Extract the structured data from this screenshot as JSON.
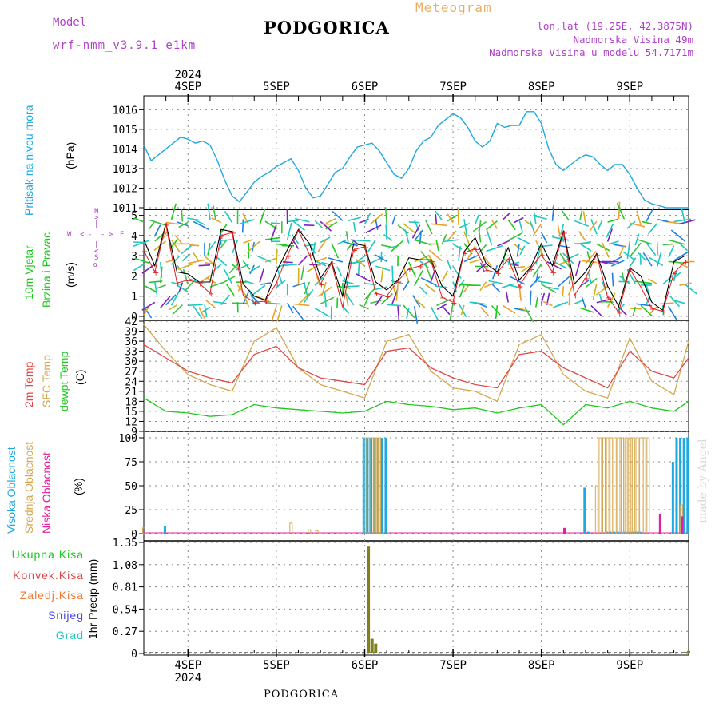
{
  "header": {
    "model_label": "Model",
    "model_run": "wrf-nmm_v3.9.1 e1km",
    "city": "PODGORICA",
    "meteogram": "Meteogram",
    "lonlat": "lon,lat (19.25E, 42.3875N)",
    "height": "Nadmorska Visina 49m",
    "model_height": "Nadmorska Visina u modelu 54.7171m"
  },
  "footer": {
    "city": "PODGORICA"
  },
  "watermark": "made by Angel",
  "colors": {
    "pressure": "#20a8e0",
    "wind_black": "#000000",
    "wind_red": "#e02020",
    "t2m": "#e04848",
    "sfc": "#d4a850",
    "dew": "#20c820",
    "high": "#20a8e0",
    "mid": "#d4a850",
    "low": "#e020a0",
    "precip": "#808020",
    "grid": "#888888"
  },
  "x_axis": {
    "year": "2024",
    "days": [
      "4SEP",
      "5SEP",
      "6SEP",
      "7SEP",
      "8SEP",
      "9SEP"
    ]
  },
  "panels": {
    "pressure": {
      "title": "Pritisak na nivou mora",
      "unit": "(hPa)",
      "ticks": [
        "1011",
        "1012",
        "1013",
        "1014",
        "1015",
        "1016"
      ]
    },
    "wind": {
      "title1": "10m Vjetar",
      "title2": "Brzina i Pravac",
      "unit": "(m/s)",
      "ticks": [
        "0",
        "1",
        "2",
        "3",
        "4",
        "5"
      ],
      "compass": {
        "n": "N",
        "w": "W",
        "e": "E",
        "s": "S",
        "arrow_l": "<",
        "arrow_r": ">",
        "dash": "-",
        "pipe": "|",
        "alpha": "α"
      }
    },
    "temp": {
      "title1": "2m Temp",
      "title2": "SFC Temp",
      "title3": "dewpt Temp",
      "unit": "(C)",
      "ticks": [
        "9",
        "12",
        "15",
        "18",
        "21",
        "24",
        "27",
        "30",
        "33",
        "36",
        "39",
        "42"
      ]
    },
    "cloud": {
      "title1": "Visoka Oblacnost",
      "title2": "Srednja Oblacnost",
      "title3": "Niska Oblacnost",
      "unit": "(%)",
      "ticks": [
        "0",
        "25",
        "50",
        "75",
        "100"
      ]
    },
    "precip": {
      "unit": "1hr Precip (mm)",
      "ticks": [
        "0",
        "0.27",
        "0.54",
        "0.81",
        "1.08",
        "1.35"
      ],
      "legend": [
        "Ukupna Kisa",
        "Konvek.Kisa",
        "Zaledj.Kisa",
        "Snijeg",
        "Grad"
      ]
    }
  },
  "chart_data": [
    {
      "type": "line",
      "title": "Pritisak na nivou mora",
      "ylabel": "(hPa)",
      "ylim": [
        1011,
        1016.3
      ],
      "x_unit": "hours from 2024-09-03 12:00",
      "x": [
        0,
        2,
        4,
        6,
        8,
        10,
        12,
        14,
        16,
        18,
        20,
        22,
        24,
        26,
        28,
        30,
        32,
        34,
        36,
        38,
        40,
        42,
        44,
        46,
        48,
        50,
        52,
        54,
        56,
        58,
        60,
        62,
        64,
        66,
        68,
        70,
        72,
        74,
        76,
        78,
        80,
        82,
        84,
        86,
        88,
        90,
        92,
        94,
        96,
        98,
        100,
        102,
        104,
        106,
        108,
        110,
        112,
        114,
        116,
        118,
        120,
        122,
        124,
        126,
        128,
        130,
        132,
        134,
        136,
        138,
        140,
        142,
        144,
        146,
        148
      ],
      "series": [
        {
          "name": "Pritisak na nivou mora",
          "values": [
            1014.2,
            1013.4,
            1013.7,
            1014.0,
            1014.3,
            1014.6,
            1014.5,
            1014.3,
            1014.4,
            1014.2,
            1013.4,
            1012.4,
            1011.6,
            1011.3,
            1011.8,
            1012.3,
            1012.6,
            1012.8,
            1013.1,
            1013.3,
            1013.5,
            1012.9,
            1012.0,
            1011.5,
            1011.6,
            1012.2,
            1012.8,
            1013.0,
            1013.6,
            1014.1,
            1014.2,
            1014.3,
            1013.9,
            1013.3,
            1012.7,
            1012.5,
            1013.0,
            1013.9,
            1014.4,
            1014.6,
            1015.2,
            1015.5,
            1015.8,
            1015.6,
            1015.1,
            1014.4,
            1014.1,
            1014.4,
            1015.3,
            1015.1,
            1015.2,
            1015.2,
            1015.9,
            1015.9,
            1015.3,
            1014.0,
            1013.2,
            1012.9,
            1013.2,
            1013.5,
            1013.7,
            1013.6,
            1013.2,
            1012.9,
            1013.2,
            1013.2,
            1012.7,
            1012.0,
            1011.4,
            1011.2,
            1011.1,
            1011.0,
            1011.0,
            1011.0,
            1011.0
          ]
        }
      ]
    },
    {
      "type": "line",
      "title": "10m Vjetar Brzina i Pravac",
      "ylabel": "(m/s)",
      "ylim": [
        0,
        5.3
      ],
      "x_unit": "hours from 2024-09-03 12:00",
      "x": [
        0,
        3,
        6,
        9,
        12,
        15,
        18,
        21,
        24,
        27,
        30,
        33,
        36,
        39,
        42,
        45,
        48,
        51,
        54,
        57,
        60,
        63,
        66,
        69,
        72,
        75,
        78,
        81,
        84,
        87,
        90,
        93,
        96,
        99,
        102,
        105,
        108,
        111,
        114,
        117,
        120,
        123,
        126,
        129,
        132,
        135,
        138,
        141,
        144,
        147
      ],
      "series": [
        {
          "name": "10m Vjetar",
          "values": [
            3.8,
            2.5,
            4.6,
            2.2,
            2.1,
            1.7,
            1.7,
            4.3,
            4.2,
            1.6,
            1.0,
            0.8,
            2.2,
            3.3,
            4.3,
            3.6,
            1.9,
            2.7,
            1.0,
            3.6,
            3.5,
            1.7,
            1.3,
            1.8,
            2.9,
            2.8,
            2.8,
            1.5,
            1.0,
            3.2,
            3.9,
            2.6,
            2.2,
            3.4,
            1.8,
            2.4,
            3.6,
            2.5,
            4.2,
            1.6,
            2.2,
            3.1,
            1.5,
            0.5,
            2.4,
            2.0,
            0.7,
            0.3,
            2.7,
            3.0
          ]
        }
      ]
    },
    {
      "type": "line",
      "title": "2m Temp / SFC Temp / dewpt Temp",
      "ylabel": "(C)",
      "ylim": [
        9,
        42
      ],
      "x_unit": "hours from 2024-09-03 12:00",
      "x": [
        0,
        6,
        12,
        18,
        24,
        30,
        36,
        42,
        48,
        54,
        60,
        66,
        72,
        78,
        84,
        90,
        96,
        102,
        108,
        114,
        120,
        126,
        132,
        138,
        144,
        148
      ],
      "series": [
        {
          "name": "2m Temp",
          "values": [
            35,
            31,
            27,
            25,
            23.5,
            32,
            34.5,
            28,
            25,
            24,
            23,
            33,
            34,
            28,
            25,
            23,
            22,
            32,
            33,
            28,
            25,
            22,
            33,
            27,
            25,
            31
          ]
        },
        {
          "name": "SFC Temp",
          "values": [
            41,
            33,
            26,
            23,
            21,
            36,
            40,
            28,
            23,
            21,
            19,
            36,
            38,
            27,
            22,
            21,
            18,
            35,
            38,
            26,
            21,
            19,
            37,
            24,
            20,
            36
          ]
        },
        {
          "name": "dewpt Temp",
          "values": [
            19,
            15,
            14.5,
            13.5,
            14,
            17,
            16,
            15.5,
            15,
            14.5,
            15,
            18,
            17,
            16.5,
            15.5,
            16,
            14.5,
            16,
            17,
            11,
            17,
            16,
            18,
            16,
            15,
            18
          ]
        }
      ]
    },
    {
      "type": "bar",
      "title": "Visoka / Srednja / Niska Oblacnost",
      "ylabel": "(%)",
      "ylim": [
        0,
        100
      ],
      "x_unit": "hours from 2024-09-03 12:00",
      "series": [
        {
          "name": "Visoka Oblacnost",
          "x": [
            6,
            60,
            61,
            62,
            63,
            64,
            65,
            66,
            120,
            121,
            126,
            127,
            128,
            129,
            130,
            131,
            132,
            133,
            134,
            135,
            144,
            145,
            146,
            147,
            148
          ],
          "values": [
            8,
            100,
            100,
            100,
            100,
            100,
            100,
            100,
            48,
            2,
            2,
            2,
            2,
            2,
            2,
            2,
            2,
            2,
            2,
            2,
            75,
            100,
            100,
            100,
            100
          ]
        },
        {
          "name": "Srednja Oblacnost",
          "x": [
            0,
            40,
            45,
            47,
            60,
            61,
            62,
            63,
            64,
            123,
            124,
            125,
            126,
            127,
            128,
            129,
            130,
            131,
            132,
            133,
            134,
            135,
            136,
            137,
            146
          ],
          "values": [
            6,
            11,
            4,
            3,
            100,
            100,
            100,
            100,
            100,
            50,
            100,
            100,
            100,
            100,
            100,
            100,
            100,
            100,
            100,
            100,
            100,
            100,
            100,
            100,
            30
          ]
        },
        {
          "name": "Niska Oblacnost",
          "x": [
            114,
            140,
            146
          ],
          "values": [
            6,
            20,
            18
          ]
        }
      ]
    },
    {
      "type": "bar",
      "title": "1hr Precip",
      "ylabel": "1hr Precip (mm)",
      "ylim": [
        0,
        1.35
      ],
      "x_unit": "hours from 2024-09-03 12:00",
      "series": [
        {
          "name": "Ukupna Kisa",
          "x": [
            61,
            62,
            63,
            147,
            148
          ],
          "values": [
            1.3,
            0.18,
            0.12,
            0.02,
            0.03
          ]
        }
      ]
    }
  ]
}
